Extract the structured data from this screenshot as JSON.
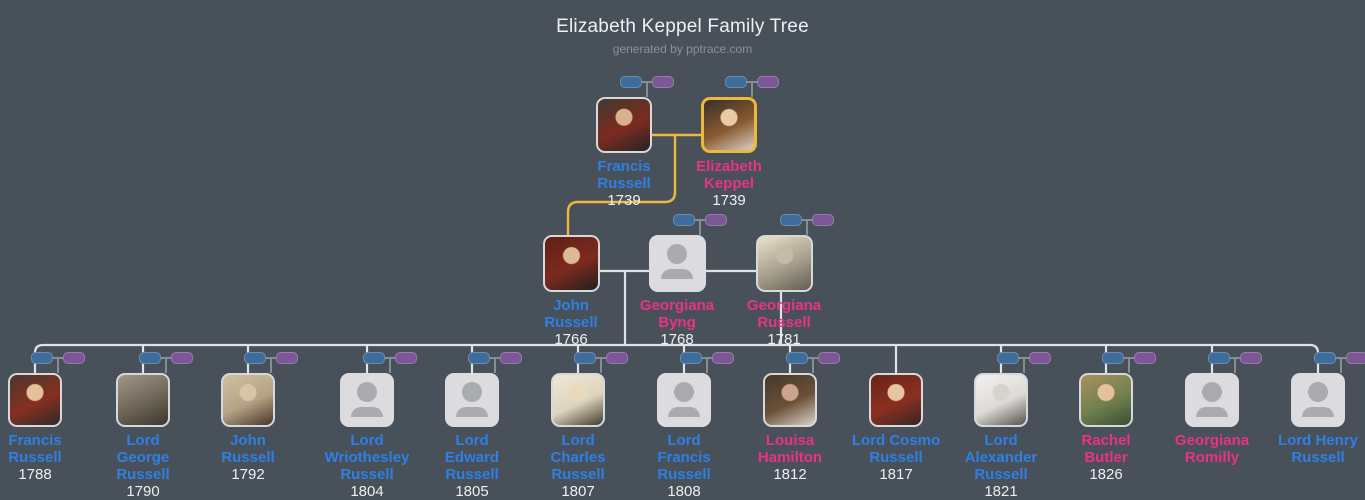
{
  "title": "Elizabeth Keppel Family Tree",
  "subtitle": "generated by pptrace.com",
  "colors": {
    "background": "#485059",
    "male": "#2e80e4",
    "female": "#ea3287",
    "year": "#eef0f2",
    "line": "#dfe3e6",
    "highlight": "#ecb93c",
    "mini_father": "#3e6d9c",
    "mini_mother": "#7b5796",
    "stub": "#878d95",
    "placeholder_bg": "#dcdcde",
    "placeholder_icon": "#a9abad",
    "portrait_border": "#d6d8da",
    "title": "#eef0f2",
    "subtitle": "#8b9199"
  },
  "icons": {
    "mini_father": "collapsed-father-icon",
    "mini_mother": "collapsed-mother-icon",
    "placeholder": "person-silhouette-icon"
  },
  "generations": [
    {
      "name": "grandparents",
      "people": [
        {
          "id": "francis-russell-1739",
          "name_lines": [
            "Francis",
            "Russell"
          ],
          "year": "1739",
          "gender": "m",
          "placeholder": false,
          "minipair": true,
          "highlight": false,
          "palette": [
            "#43392f",
            "#7c2b20",
            "#272325"
          ],
          "face": "#d9b28c"
        },
        {
          "id": "elizabeth-keppel-1739",
          "name_lines": [
            "Elizabeth",
            "Keppel"
          ],
          "year": "1739",
          "gender": "f",
          "placeholder": false,
          "minipair": true,
          "highlight": true,
          "palette": [
            "#35302b",
            "#8a5a30",
            "#d8cfc6"
          ],
          "face": "#e9cba6"
        }
      ]
    },
    {
      "name": "parents",
      "people": [
        {
          "id": "john-russell-1766",
          "name_lines": [
            "John",
            "Russell"
          ],
          "year": "1766",
          "gender": "m",
          "placeholder": false,
          "minipair": false,
          "highlight": false,
          "palette": [
            "#601f18",
            "#7c2a1e",
            "#23201f"
          ],
          "face": "#ddb995"
        },
        {
          "id": "georgiana-byng-1768",
          "name_lines": [
            "Georgiana",
            "Byng"
          ],
          "year": "1768",
          "gender": "f",
          "placeholder": true,
          "minipair": true,
          "highlight": false,
          "palette": null,
          "face": null
        },
        {
          "id": "georgiana-russell-1781",
          "name_lines": [
            "Georgiana",
            "Russell"
          ],
          "year": "1781",
          "gender": "f",
          "placeholder": false,
          "minipair": true,
          "highlight": false,
          "palette": [
            "#e8e1cb",
            "#a79f8d",
            "#615c53"
          ],
          "face": "#c4bca7"
        }
      ]
    },
    {
      "name": "children",
      "people": [
        {
          "id": "francis-russell-1788",
          "name_lines": [
            "Francis",
            "Russell"
          ],
          "year": "1788",
          "gender": "m",
          "placeholder": false,
          "minipair": true,
          "highlight": false,
          "palette": [
            "#4a3831",
            "#86301f",
            "#2f2a28"
          ],
          "face": "#e5c09b"
        },
        {
          "id": "lord-george-russell-1790",
          "name_lines": [
            "Lord",
            "George",
            "Russell"
          ],
          "year": "1790",
          "gender": "m",
          "placeholder": false,
          "minipair": true,
          "highlight": false,
          "palette": [
            "#a1968a",
            "#6e6557",
            "#3a352d"
          ],
          "face": null
        },
        {
          "id": "john-russell-1792",
          "name_lines": [
            "John",
            "Russell"
          ],
          "year": "1792",
          "gender": "m",
          "placeholder": false,
          "minipair": true,
          "highlight": false,
          "palette": [
            "#d2bfa2",
            "#b6a184",
            "#443728"
          ],
          "face": "#d9c5a6"
        },
        {
          "id": "lord-wriothesley-russell-1804",
          "name_lines": [
            "Lord",
            "Wriothesley",
            "Russell"
          ],
          "year": "1804",
          "gender": "m",
          "placeholder": true,
          "minipair": true,
          "highlight": false,
          "palette": null,
          "face": null
        },
        {
          "id": "lord-edward-russell-1805",
          "name_lines": [
            "Lord",
            "Edward",
            "Russell"
          ],
          "year": "1805",
          "gender": "m",
          "placeholder": true,
          "minipair": true,
          "highlight": false,
          "palette": null,
          "face": null
        },
        {
          "id": "lord-charles-russell-1807",
          "name_lines": [
            "Lord",
            "Charles",
            "Russell"
          ],
          "year": "1807",
          "gender": "m",
          "placeholder": false,
          "minipair": true,
          "highlight": false,
          "palette": [
            "#efe8d6",
            "#ddd4bd",
            "#413b2f"
          ],
          "face": "#e9dabd"
        },
        {
          "id": "lord-francis-russell-1808",
          "name_lines": [
            "Lord",
            "Francis",
            "Russell"
          ],
          "year": "1808",
          "gender": "m",
          "placeholder": true,
          "minipair": true,
          "highlight": false,
          "palette": null,
          "face": null
        },
        {
          "id": "louisa-hamilton-1812",
          "name_lines": [
            "Louisa",
            "Hamilton"
          ],
          "year": "1812",
          "gender": "f",
          "placeholder": false,
          "minipair": true,
          "highlight": false,
          "palette": [
            "#46362a",
            "#6b5138",
            "#d9d2c8"
          ],
          "face": "#caa58a"
        },
        {
          "id": "lord-cosmo-russell-1817",
          "name_lines": [
            "Lord Cosmo",
            "Russell"
          ],
          "year": "1817",
          "gender": "m",
          "placeholder": false,
          "minipair": false,
          "highlight": false,
          "palette": [
            "#672319",
            "#8c2f20",
            "#332724"
          ],
          "face": "#e8c5a2"
        },
        {
          "id": "lord-alexander-russell-1821",
          "name_lines": [
            "Lord",
            "Alexander",
            "Russell"
          ],
          "year": "1821",
          "gender": "m",
          "placeholder": false,
          "minipair": true,
          "highlight": false,
          "palette": [
            "#f2f1ef",
            "#dddbd7",
            "#56534e"
          ],
          "face": "#d8d3ca"
        },
        {
          "id": "rachel-butler-1826",
          "name_lines": [
            "Rachel",
            "Butler"
          ],
          "year": "1826",
          "gender": "f",
          "placeholder": false,
          "minipair": true,
          "highlight": false,
          "palette": [
            "#ab905f",
            "#70804f",
            "#394f33"
          ],
          "face": "#e4c29e"
        },
        {
          "id": "georgiana-romilly",
          "name_lines": [
            "Georgiana",
            "Romilly"
          ],
          "year": null,
          "gender": "f",
          "placeholder": true,
          "minipair": true,
          "highlight": false,
          "palette": null,
          "face": null
        },
        {
          "id": "lord-henry-russell",
          "name_lines": [
            "Lord Henry",
            "Russell"
          ],
          "year": null,
          "gender": "m",
          "placeholder": true,
          "minipair": true,
          "highlight": false,
          "palette": null,
          "face": null
        }
      ]
    }
  ]
}
